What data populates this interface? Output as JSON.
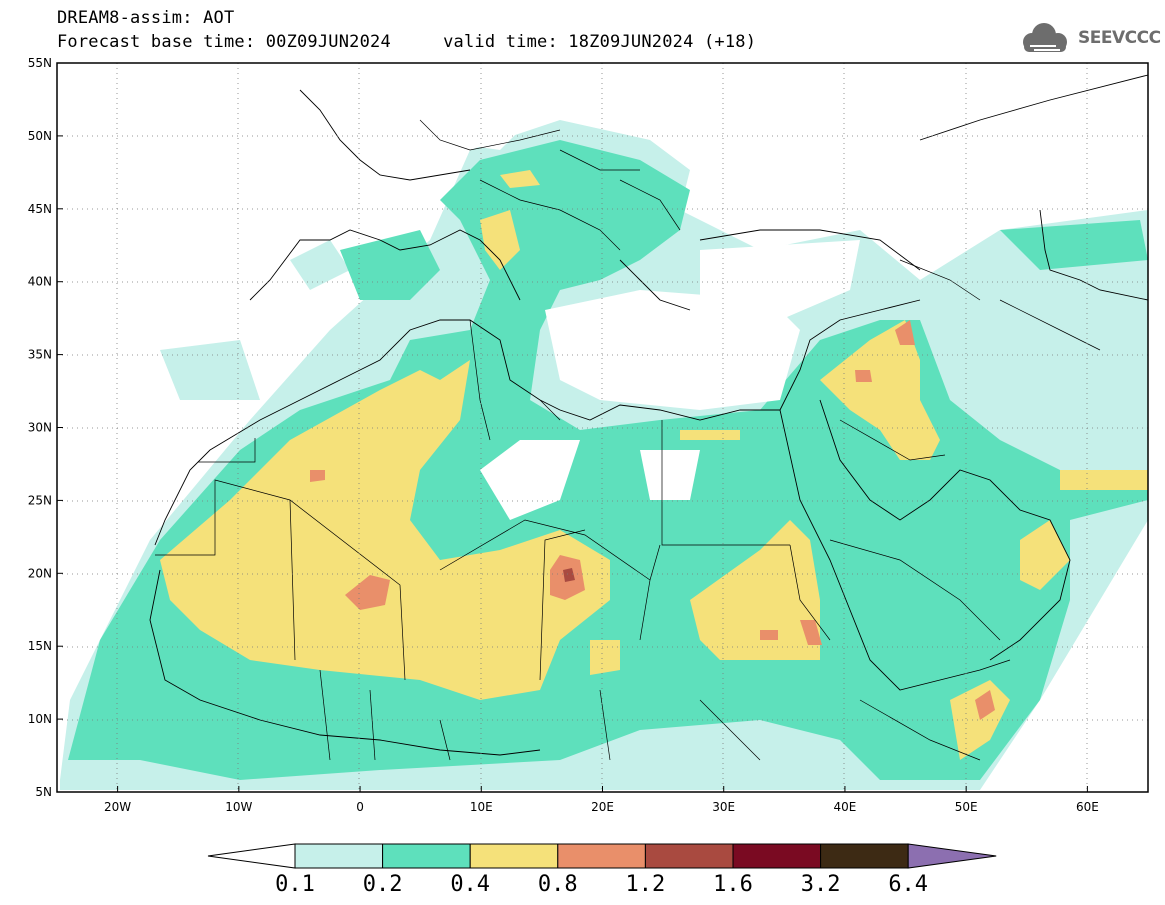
{
  "header": {
    "line1": "DREAM8-assim: AOT",
    "line2": "Forecast base time: 00Z09JUN2024     valid time: 18Z09JUN2024 (+18)"
  },
  "logo": {
    "text": "SEEVCCC",
    "icon": "cloud-icon"
  },
  "map": {
    "lat_range": [
      5,
      55
    ],
    "lon_range": [
      -25,
      65
    ],
    "lat_labels": [
      "55N",
      "50N",
      "45N",
      "40N",
      "35N",
      "30N",
      "25N",
      "20N",
      "15N",
      "10N",
      "5N"
    ],
    "lon_labels": [
      "20W",
      "10W",
      "0",
      "10E",
      "20E",
      "30E",
      "40E",
      "50E",
      "60E"
    ],
    "gridlines": true
  },
  "colorbar": {
    "labels": [
      "0.1",
      "0.2",
      "0.4",
      "0.8",
      "1.2",
      "1.6",
      "3.2",
      "6.4"
    ],
    "colors": [
      "#c6f0ea",
      "#5ee0bc",
      "#f5e17a",
      "#e98f6a",
      "#a94a40",
      "#7a0a22",
      "#3d2a14",
      "#8c6fb0"
    ],
    "lower_extend_color": "#ffffff"
  }
}
